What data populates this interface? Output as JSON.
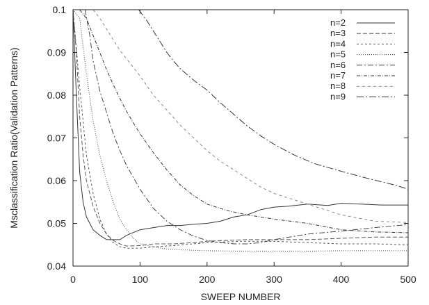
{
  "chart_data": {
    "type": "line",
    "title": "",
    "xlabel": "SWEEP NUMBER",
    "ylabel": "Msclassification Ratio(Validation Patterns)",
    "xlim": [
      0,
      500
    ],
    "ylim": [
      0.04,
      0.1
    ],
    "xticks": [
      0,
      100,
      200,
      300,
      400,
      500
    ],
    "xtick_labels": [
      "0",
      "100",
      "200",
      "300",
      "400",
      "500"
    ],
    "yticks": [
      0.04,
      0.05,
      0.06,
      0.07,
      0.08,
      0.09,
      0.1
    ],
    "ytick_labels": [
      "0.04",
      "0.05",
      "0.06",
      "0.07",
      "0.08",
      "0.09",
      "0.1"
    ],
    "grid": false,
    "legend_position": "top-right",
    "series": [
      {
        "name": "n=2",
        "dash": "",
        "color": "#333333",
        "x": [
          0,
          5,
          10,
          15,
          20,
          30,
          40,
          50,
          60,
          70,
          80,
          100,
          120,
          140,
          160,
          180,
          200,
          220,
          240,
          260,
          280,
          300,
          320,
          350,
          380,
          400,
          430,
          460,
          500
        ],
        "y": [
          0.1,
          0.08,
          0.062,
          0.055,
          0.0515,
          0.0485,
          0.0472,
          0.0462,
          0.0462,
          0.0462,
          0.0472,
          0.0485,
          0.049,
          0.0495,
          0.0495,
          0.0498,
          0.05,
          0.0505,
          0.0515,
          0.052,
          0.0532,
          0.0538,
          0.054,
          0.0545,
          0.0542,
          0.0547,
          0.0545,
          0.0543,
          0.0543
        ]
      },
      {
        "name": "n=3",
        "dash": "6,3",
        "color": "#555555",
        "x": [
          0,
          5,
          10,
          15,
          20,
          30,
          40,
          50,
          60,
          70,
          80,
          100,
          120,
          150,
          180,
          200,
          230,
          260,
          300,
          350,
          400,
          450,
          500
        ],
        "y": [
          0.1,
          0.09,
          0.075,
          0.066,
          0.06,
          0.054,
          0.05,
          0.0475,
          0.046,
          0.0452,
          0.0447,
          0.0448,
          0.0452,
          0.0452,
          0.0455,
          0.0458,
          0.046,
          0.0462,
          0.0462,
          0.0462,
          0.0465,
          0.0468,
          0.0468
        ]
      },
      {
        "name": "n=4",
        "dash": "3,3",
        "color": "#555555",
        "x": [
          0,
          10,
          20,
          30,
          40,
          50,
          60,
          70,
          80,
          100,
          120,
          150,
          200,
          250,
          300,
          350,
          400,
          450,
          500
        ],
        "y": [
          0.1,
          0.082,
          0.066,
          0.057,
          0.051,
          0.0475,
          0.0455,
          0.0445,
          0.0442,
          0.0442,
          0.0445,
          0.0448,
          0.0455,
          0.0458,
          0.0458,
          0.0455,
          0.0452,
          0.0452,
          0.045
        ]
      },
      {
        "name": "n=5",
        "dash": "1,2",
        "color": "#444444",
        "x": [
          0,
          10,
          20,
          30,
          40,
          50,
          60,
          70,
          80,
          90,
          100,
          120,
          140,
          160,
          180,
          200,
          250,
          300,
          350,
          400,
          450,
          500
        ],
        "y": [
          0.1,
          0.098,
          0.085,
          0.074,
          0.066,
          0.06,
          0.055,
          0.051,
          0.0485,
          0.0465,
          0.0452,
          0.0445,
          0.044,
          0.0438,
          0.0437,
          0.0436,
          0.0435,
          0.0435,
          0.0435,
          0.0436,
          0.0436,
          0.0436
        ]
      },
      {
        "name": "n=6",
        "dash": "8,3,2,3",
        "color": "#444444",
        "x": [
          18,
          25,
          30,
          40,
          50,
          60,
          70,
          80,
          100,
          120,
          140,
          160,
          180,
          200,
          220,
          240,
          260,
          280,
          300,
          350,
          400,
          450,
          500
        ],
        "y": [
          0.1,
          0.094,
          0.088,
          0.081,
          0.076,
          0.071,
          0.067,
          0.0635,
          0.058,
          0.0535,
          0.0505,
          0.0485,
          0.047,
          0.046,
          0.0455,
          0.0452,
          0.0452,
          0.0455,
          0.0462,
          0.0475,
          0.0482,
          0.049,
          0.0497
        ]
      },
      {
        "name": "n=7",
        "dash": "5,2,1,2",
        "color": "#333333",
        "x": [
          10,
          20,
          30,
          40,
          50,
          60,
          70,
          80,
          90,
          100,
          120,
          140,
          160,
          180,
          200,
          230,
          260,
          300,
          350,
          400,
          450,
          500
        ],
        "y": [
          0.1,
          0.098,
          0.094,
          0.09,
          0.086,
          0.0825,
          0.0792,
          0.0762,
          0.0735,
          0.071,
          0.0665,
          0.0625,
          0.059,
          0.0565,
          0.0545,
          0.053,
          0.052,
          0.051,
          0.05,
          0.0485,
          0.048,
          0.0478
        ]
      },
      {
        "name": "n=8",
        "dash": "4,4",
        "color": "#888888",
        "x": [
          30,
          40,
          50,
          60,
          70,
          80,
          90,
          100,
          120,
          140,
          160,
          180,
          200,
          220,
          240,
          260,
          280,
          300,
          350,
          400,
          450,
          500
        ],
        "y": [
          0.1,
          0.098,
          0.0955,
          0.093,
          0.0905,
          0.0885,
          0.0865,
          0.0845,
          0.08,
          0.0765,
          0.073,
          0.07,
          0.067,
          0.0645,
          0.0625,
          0.0605,
          0.0585,
          0.057,
          0.0545,
          0.052,
          0.0505,
          0.0502
        ]
      },
      {
        "name": "n=9",
        "dash": "10,3,2,3",
        "color": "#333333",
        "x": [
          98,
          110,
          120,
          130,
          140,
          150,
          160,
          180,
          200,
          220,
          240,
          260,
          280,
          300,
          330,
          360,
          400,
          440,
          480,
          500
        ],
        "y": [
          0.1,
          0.0975,
          0.095,
          0.0925,
          0.09,
          0.088,
          0.0862,
          0.0835,
          0.0812,
          0.0782,
          0.0755,
          0.0728,
          0.0705,
          0.0685,
          0.066,
          0.064,
          0.0622,
          0.0605,
          0.059,
          0.058
        ]
      }
    ]
  }
}
